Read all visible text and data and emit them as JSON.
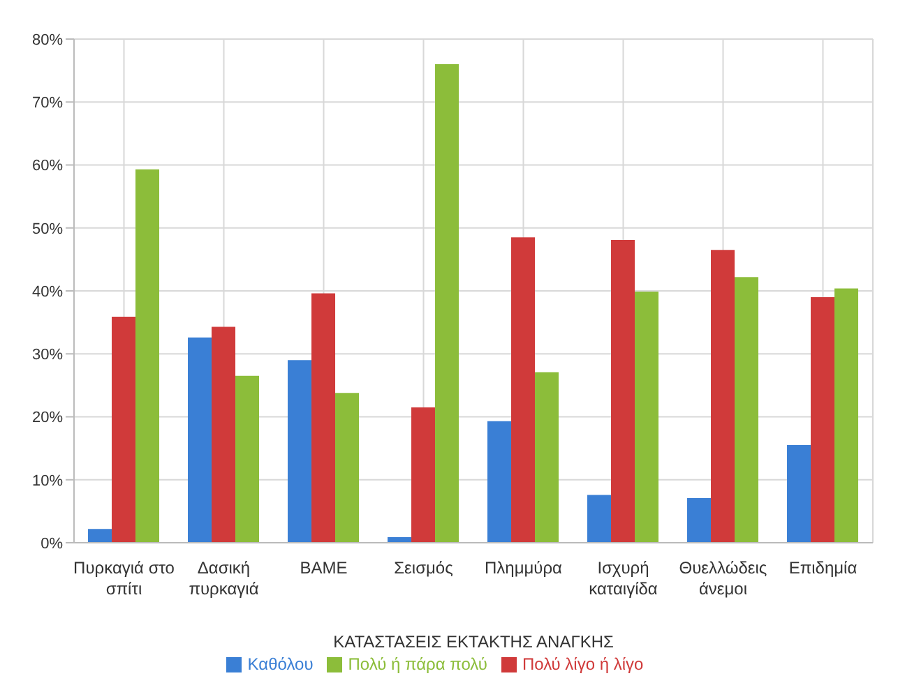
{
  "chart_data": {
    "type": "bar",
    "xlabel": "ΚΑΤΑΣΤΑΣΕΙΣ ΕΚΤΑΚΤΗΣ ΑΝΑΓΚΗΣ",
    "categories": [
      "Πυρκαγιά στο σπίτι",
      "Δασική πυρκαγιά",
      "ΒΑΜΕ",
      "Σεισμός",
      "Πλημμύρα",
      "Ισχυρή καταιγίδα",
      "Θυελλώδεις άνεμοι",
      "Επιδημία"
    ],
    "series": [
      {
        "name": "Καθόλου",
        "color": "#3a7fd5",
        "values": [
          2.2,
          32.6,
          29.0,
          0.9,
          19.3,
          7.6,
          7.1,
          15.5
        ]
      },
      {
        "name": "Πολύ λίγο ή λίγο",
        "color": "#d03a3a",
        "values": [
          35.9,
          34.3,
          39.6,
          21.5,
          48.5,
          48.1,
          46.5,
          39.0
        ]
      },
      {
        "name": "Πολύ ή πάρα πολύ",
        "color": "#8cbd3a",
        "values": [
          59.3,
          26.5,
          23.8,
          76.0,
          27.1,
          39.9,
          42.2,
          40.4
        ]
      }
    ],
    "ylim": [
      0,
      80
    ],
    "yticks": [
      {
        "value": 0,
        "label": "0%"
      },
      {
        "value": 10,
        "label": "10%"
      },
      {
        "value": 20,
        "label": "20%"
      },
      {
        "value": 30,
        "label": "30%"
      },
      {
        "value": 40,
        "label": "40%"
      },
      {
        "value": 50,
        "label": "50%"
      },
      {
        "value": 60,
        "label": "60%"
      },
      {
        "value": 70,
        "label": "70%"
      },
      {
        "value": 80,
        "label": "80%"
      }
    ],
    "grid": true,
    "legend": "bottom"
  }
}
